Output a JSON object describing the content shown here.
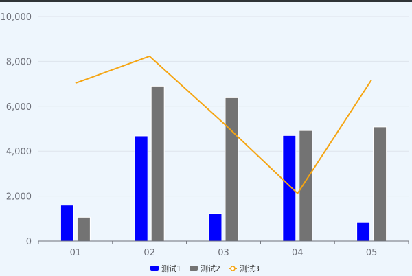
{
  "chart_data": {
    "type": "bar",
    "title": "",
    "xlabel": "",
    "ylabel": "",
    "categories": [
      "01",
      "02",
      "03",
      "04",
      "05"
    ],
    "ylim": [
      0,
      10000
    ],
    "yticks": [
      0,
      2000,
      4000,
      6000,
      8000,
      10000
    ],
    "ytick_labels": [
      "0",
      "2,000",
      "4,000",
      "6,000",
      "8,000",
      "10,000"
    ],
    "grid": true,
    "legend_position": "bottom-center",
    "series": [
      {
        "name": "测试1",
        "type": "bar",
        "color": "#0000ff",
        "values": [
          1600,
          4680,
          1230,
          4700,
          820
        ]
      },
      {
        "name": "测试2",
        "type": "bar",
        "color": "#737373",
        "values": [
          1060,
          6900,
          6380,
          4920,
          5080
        ]
      },
      {
        "name": "测试3",
        "type": "line",
        "color": "#f5a512",
        "values": [
          7030,
          8230,
          5250,
          2120,
          7180
        ]
      }
    ]
  }
}
